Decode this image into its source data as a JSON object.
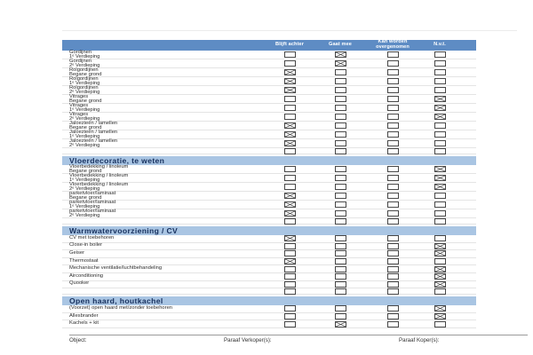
{
  "table": {
    "columns": [
      "Blijft achter",
      "Gaat mee",
      "Kan worden overgenomen",
      "N.v.t."
    ],
    "sections": [
      {
        "title": "",
        "rows": [
          {
            "name": "Gordijnen",
            "floor": "1ᵉ Verdieping",
            "checks": [
              false,
              true,
              false,
              false
            ]
          },
          {
            "name": "Gordijnen",
            "floor": "2ᵉ Verdieping",
            "checks": [
              false,
              true,
              false,
              false
            ]
          },
          {
            "name": "Rolgordijnen",
            "floor": "Begane grond",
            "checks": [
              true,
              false,
              false,
              false
            ]
          },
          {
            "name": "Rolgordijnen",
            "floor": "1ᵉ Verdieping",
            "checks": [
              true,
              false,
              false,
              false
            ]
          },
          {
            "name": "Rolgordijnen",
            "floor": "2ᵉ Verdieping",
            "checks": [
              true,
              false,
              false,
              false
            ]
          },
          {
            "name": "Vitrages",
            "floor": "Begane grond",
            "checks": [
              false,
              false,
              false,
              true
            ]
          },
          {
            "name": "Vitrages",
            "floor": "1ᵉ Verdieping",
            "checks": [
              false,
              false,
              false,
              true
            ]
          },
          {
            "name": "Vitrages",
            "floor": "2ᵉ Verdieping",
            "checks": [
              false,
              false,
              false,
              true
            ]
          },
          {
            "name": "Jaloezieën / lamellen",
            "floor": "Begane grond",
            "checks": [
              true,
              false,
              false,
              false
            ]
          },
          {
            "name": "Jaloezieën / lamellen",
            "floor": "1ᵉ Verdieping",
            "checks": [
              true,
              false,
              false,
              false
            ]
          },
          {
            "name": "Jaloezieën / lamellen",
            "floor": "2ᵉ Verdieping",
            "checks": [
              true,
              false,
              false,
              false
            ]
          },
          {
            "name": "",
            "floor": "",
            "checks": [
              false,
              false,
              false,
              false
            ]
          }
        ]
      },
      {
        "title": "Vloerdecoratie, te weten",
        "rows": [
          {
            "name": "Vloerbedekking / linoleum",
            "floor": "Begane grond",
            "checks": [
              false,
              false,
              false,
              true
            ]
          },
          {
            "name": "Vloerbedekking / linoleum",
            "floor": "1ᵉ Verdieping",
            "checks": [
              false,
              false,
              false,
              true
            ]
          },
          {
            "name": "Vloerbedekking / linoleum",
            "floor": "2ᵉ Verdieping",
            "checks": [
              false,
              false,
              false,
              true
            ]
          },
          {
            "name": "parketvloer/laminaat",
            "floor": "Begane grond",
            "checks": [
              true,
              false,
              false,
              false
            ]
          },
          {
            "name": "parketvloer/laminaat",
            "floor": "1ᵉ Verdieping",
            "checks": [
              true,
              false,
              false,
              false
            ]
          },
          {
            "name": "parketvloer/laminaat",
            "floor": "2ᵉ Verdieping",
            "checks": [
              true,
              false,
              false,
              false
            ]
          },
          {
            "name": "",
            "floor": "",
            "checks": [
              false,
              false,
              false,
              false
            ]
          }
        ]
      },
      {
        "title": "Warmwatervoorziening / CV",
        "rows": [
          {
            "name": "CV met toebehoren",
            "floor": "",
            "checks": [
              true,
              false,
              false,
              false
            ]
          },
          {
            "name": "Close-in boiler",
            "floor": "",
            "checks": [
              false,
              false,
              false,
              true
            ]
          },
          {
            "name": "Geiser",
            "floor": "",
            "checks": [
              false,
              false,
              false,
              true
            ]
          },
          {
            "name": "Thermostaat",
            "floor": "",
            "checks": [
              true,
              false,
              false,
              false
            ]
          },
          {
            "name": "Mechanische ventilatie/luchtbehandeling",
            "floor": "",
            "checks": [
              false,
              false,
              false,
              true
            ]
          },
          {
            "name": "Airconditioning",
            "floor": "",
            "checks": [
              false,
              false,
              false,
              true
            ]
          },
          {
            "name": "Quooker",
            "floor": "",
            "checks": [
              false,
              false,
              false,
              true
            ]
          },
          {
            "name": "",
            "floor": "",
            "checks": [
              false,
              false,
              false,
              false
            ]
          }
        ]
      },
      {
        "title": "Open haard, houtkachel",
        "rows": [
          {
            "name": "(Voorzet) open haard met/zonder toebehoren",
            "floor": "",
            "checks": [
              false,
              false,
              false,
              true
            ]
          },
          {
            "name": "Allesbrander",
            "floor": "",
            "checks": [
              false,
              false,
              false,
              true
            ]
          },
          {
            "name": "Kachels + kit",
            "floor": "",
            "checks": [
              false,
              true,
              false,
              false
            ]
          }
        ]
      }
    ]
  },
  "footer": {
    "object_label": "Object:",
    "verkoper_label": "Paraaf Verkoper(s):",
    "koper_label": "Paraaf Koper(s):"
  },
  "colors": {
    "header_bar": "#5e8cc4",
    "header_text": "#ffffff",
    "section_bar": "#a9c5e3",
    "section_title_text": "#17305e",
    "checkbox_border": "#474747",
    "row_divider": "#e4e4e4",
    "footer_line": "#9b9b9b"
  }
}
